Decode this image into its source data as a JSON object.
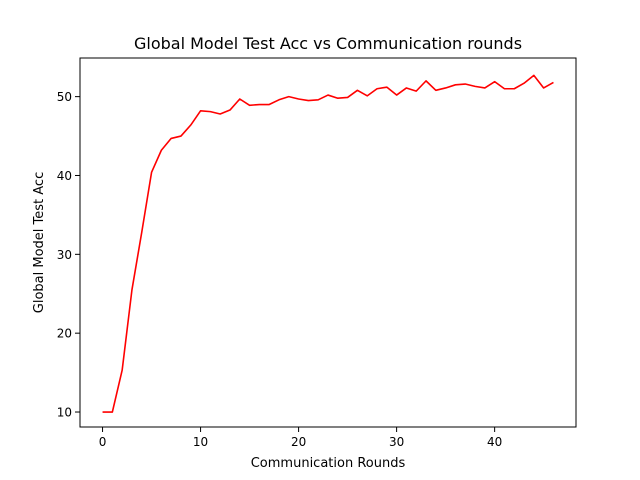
{
  "chart_data": {
    "type": "line",
    "title": "Global Model Test Acc vs Communication rounds",
    "xlabel": "Communication Rounds",
    "ylabel": "Global Model Test Acc",
    "xlim": [
      -2.3,
      48.3
    ],
    "ylim": [
      8.1,
      54.9
    ],
    "xticks": [
      0,
      10,
      20,
      30,
      40
    ],
    "yticks": [
      10,
      20,
      30,
      40,
      50
    ],
    "grid": false,
    "legend": "none",
    "series": [
      {
        "color": "#ff0000",
        "x": [
          0,
          1,
          2,
          3,
          4,
          5,
          6,
          7,
          8,
          9,
          10,
          11,
          12,
          13,
          14,
          15,
          16,
          17,
          18,
          19,
          20,
          21,
          22,
          23,
          24,
          25,
          26,
          27,
          28,
          29,
          30,
          31,
          32,
          33,
          34,
          35,
          36,
          37,
          38,
          39,
          40,
          41,
          42,
          43,
          44,
          45,
          46
        ],
        "y": [
          10.0,
          10.0,
          15.3,
          25.5,
          32.8,
          40.4,
          43.2,
          44.7,
          45.0,
          46.4,
          48.2,
          48.1,
          47.8,
          48.3,
          49.7,
          48.9,
          49.0,
          49.0,
          49.6,
          50.0,
          49.7,
          49.5,
          49.6,
          50.2,
          49.8,
          49.9,
          50.8,
          50.1,
          51.0,
          51.2,
          50.2,
          51.1,
          50.7,
          52.0,
          50.8,
          51.1,
          51.5,
          51.6,
          51.3,
          51.1,
          51.9,
          51.0,
          51.0,
          51.7,
          52.7,
          51.1,
          51.8
        ]
      }
    ]
  }
}
